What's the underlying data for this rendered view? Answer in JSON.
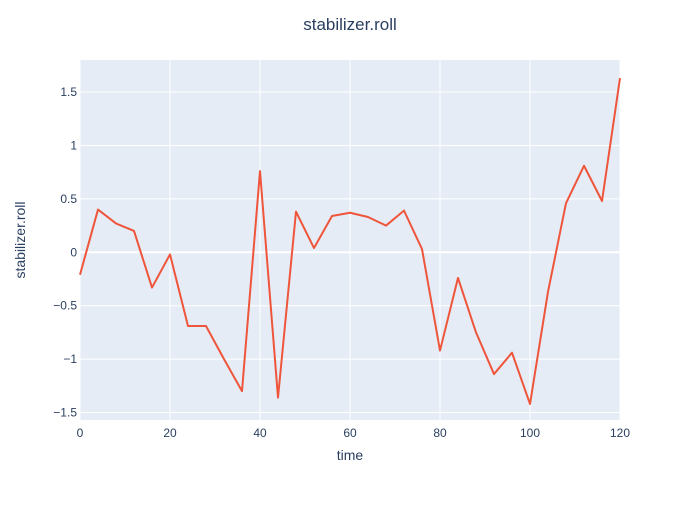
{
  "chart_data": {
    "type": "line",
    "title": "stabilizer.roll",
    "xlabel": "time",
    "ylabel": "stabilizer.roll",
    "xlim": [
      0,
      120
    ],
    "ylim": [
      -1.57,
      1.8
    ],
    "x_ticks": [
      0,
      20,
      40,
      60,
      80,
      100,
      120
    ],
    "x_tick_labels": [
      "0",
      "20",
      "40",
      "60",
      "80",
      "100",
      "120"
    ],
    "y_ticks": [
      -1.5,
      -1,
      -0.5,
      0,
      0.5,
      1,
      1.5
    ],
    "y_tick_labels": [
      "−1.5",
      "−1",
      "−0.5",
      "0",
      "0.5",
      "1",
      "1.5"
    ],
    "grid": true,
    "colors": {
      "plot_background": "#e5ecf6",
      "grid": "#ffffff",
      "line": "#ef553b",
      "text": "#2a3f5f"
    },
    "series": [
      {
        "x": [
          0,
          4,
          8,
          12,
          16,
          20,
          24,
          28,
          32,
          36,
          40,
          44,
          48,
          52,
          56,
          60,
          64,
          68,
          72,
          76,
          80,
          84,
          88,
          92,
          96,
          100,
          104,
          108,
          112,
          116,
          120
        ],
        "y": [
          -0.21,
          0.4,
          0.27,
          0.2,
          -0.33,
          -0.02,
          -0.69,
          -0.69,
          -1.0,
          -1.3,
          0.76,
          -1.36,
          0.38,
          0.04,
          0.34,
          0.37,
          0.33,
          0.25,
          0.39,
          0.03,
          -0.92,
          -0.24,
          -0.75,
          -1.14,
          -0.94,
          -1.42,
          -0.37,
          0.46,
          0.81,
          0.48,
          1.63
        ]
      }
    ]
  }
}
